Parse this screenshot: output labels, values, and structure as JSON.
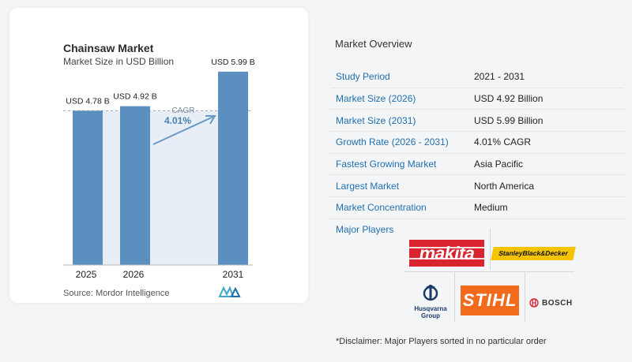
{
  "chart": {
    "title": "Chainsaw Market",
    "subtitle": "Market Size in USD Billion",
    "source": "Source:  Mordor Intelligence",
    "cagr_label": "CAGR",
    "cagr_value": "4.01%"
  },
  "chart_data": {
    "type": "bar",
    "title": "Chainsaw Market",
    "subtitle": "Market Size in USD Billion",
    "categories": [
      "2025",
      "2026",
      "2031"
    ],
    "values": [
      4.78,
      4.92,
      5.99
    ],
    "data_labels": [
      "USD 4.78 B",
      "USD 4.92 B",
      "USD 5.99 B"
    ],
    "ylim": [
      0,
      6.5
    ],
    "annotation": {
      "text": "CAGR 4.01%",
      "from": "2026",
      "to": "2031"
    },
    "colors": {
      "bar": "#5a8fbf",
      "shade": "#e8eef5",
      "arrow": "#6b9ac4",
      "dashed": "#9aa3ad",
      "cagr_label": "#4a7fb2"
    },
    "grid": false
  },
  "overview": {
    "title": "Market Overview",
    "rows": [
      {
        "key": "Study Period",
        "value": "2021 - 2031"
      },
      {
        "key": "Market Size (2026)",
        "value": "USD 4.92 Billion"
      },
      {
        "key": "Market Size (2031)",
        "value": "USD 5.99 Billion"
      },
      {
        "key": "Growth Rate (2026 - 2031)",
        "value": "4.01% CAGR"
      },
      {
        "key": "Fastest Growing Market",
        "value": "Asia Pacific"
      },
      {
        "key": "Largest Market",
        "value": "North America"
      },
      {
        "key": "Market Concentration",
        "value": "Medium"
      }
    ]
  },
  "players": {
    "title": "Major Players",
    "logos": {
      "makita": "makita",
      "sbd": "StanleyBlack&Decker",
      "stihl": "STIHL",
      "husqvarna": "Husqvarna Group",
      "bosch": "BOSCH"
    },
    "disclaimer": "*Disclaimer: Major Players sorted in no particular order"
  }
}
